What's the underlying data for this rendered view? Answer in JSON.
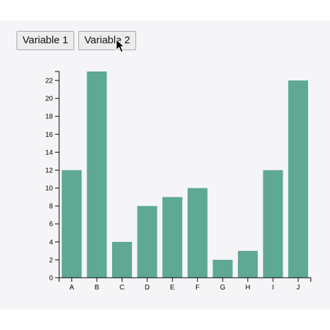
{
  "buttons": {
    "variable1_label": "Variable 1",
    "variable2_label": "Variable 2"
  },
  "colors": {
    "bar": "#5ea894",
    "panel_background": "#f5f5f7",
    "axis": "#000000"
  },
  "chart_data": {
    "type": "bar",
    "categories": [
      "A",
      "B",
      "C",
      "D",
      "E",
      "F",
      "G",
      "H",
      "I",
      "J"
    ],
    "values": [
      12,
      23,
      4,
      8,
      9,
      10,
      2,
      3,
      12,
      22
    ],
    "yticks": [
      0,
      2,
      4,
      6,
      8,
      10,
      12,
      14,
      16,
      18,
      20,
      22
    ],
    "ylim": [
      0,
      23
    ],
    "grid": false,
    "title": "",
    "xlabel": "",
    "ylabel": ""
  }
}
